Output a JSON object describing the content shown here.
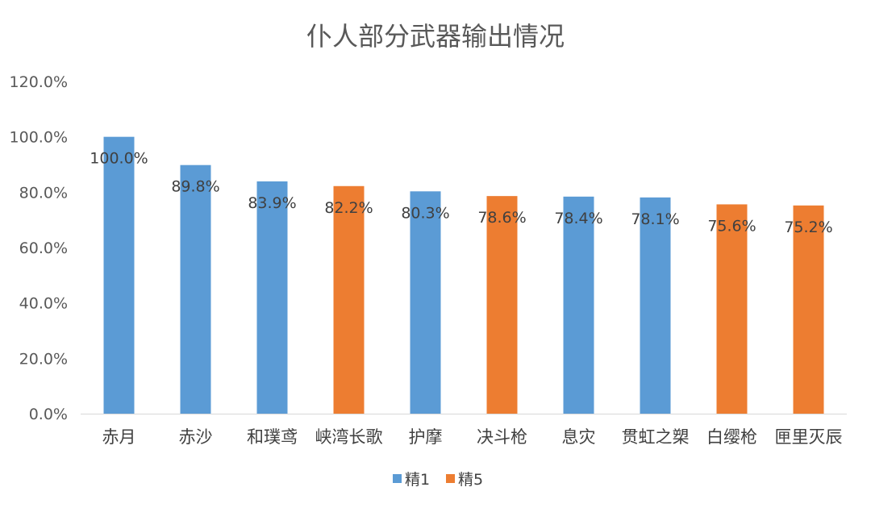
{
  "chart_data": {
    "type": "bar",
    "title": "仆人部分武器输出情况",
    "xlabel": "",
    "ylabel": "",
    "categories": [
      "赤月",
      "赤沙",
      "和璞鸢",
      "峡湾长歌",
      "护摩",
      "决斗枪",
      "息灾",
      "贯虹之槊",
      "白缨枪",
      "匣里灭辰"
    ],
    "values": [
      100.0,
      89.8,
      83.9,
      82.2,
      80.3,
      78.6,
      78.4,
      78.1,
      75.6,
      75.2
    ],
    "data_labels": [
      "100.0%",
      "89.8%",
      "83.9%",
      "82.2%",
      "80.3%",
      "78.6%",
      "78.4%",
      "78.1%",
      "75.6%",
      "75.2%"
    ],
    "bar_series": [
      "精1",
      "精1",
      "精1",
      "精5",
      "精1",
      "精5",
      "精1",
      "精1",
      "精5",
      "精5"
    ],
    "series": [
      {
        "name": "精1",
        "color": "#5b9bd5"
      },
      {
        "name": "精5",
        "color": "#ed7d31"
      }
    ],
    "ylim": [
      0,
      120
    ],
    "yticks": [
      0,
      20,
      40,
      60,
      80,
      100,
      120
    ],
    "ytick_labels": [
      "0.0%",
      "20.0%",
      "40.0%",
      "60.0%",
      "80.0%",
      "100.0%",
      "120.0%"
    ],
    "grid": false,
    "legend": "bottom-center"
  }
}
